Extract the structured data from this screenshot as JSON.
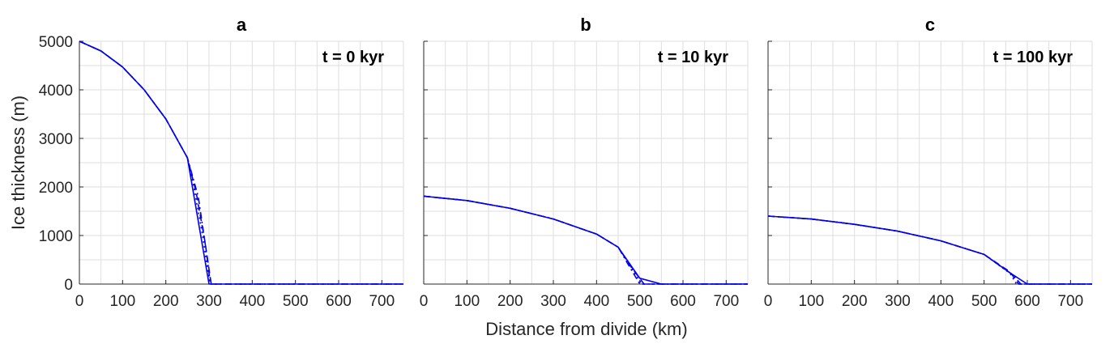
{
  "figure": {
    "xlabel": "Distance from divide (km)",
    "ylabel": "Ice thickness (m)",
    "line_color": "#0000ee"
  },
  "chart_data": [
    {
      "type": "line",
      "title": "a",
      "annotation": "t = 0 kyr",
      "xlim": [
        0,
        750
      ],
      "ylim": [
        0,
        5000
      ],
      "xticks": [
        0,
        100,
        200,
        300,
        400,
        500,
        600,
        700
      ],
      "yticks": [
        0,
        1000,
        2000,
        3000,
        4000,
        5000
      ],
      "grid": true,
      "series": [
        {
          "style": "solid",
          "x": [
            0,
            50,
            100,
            150,
            200,
            250,
            300,
            305,
            750
          ],
          "y": [
            5000,
            4800,
            4470,
            4000,
            3400,
            2600,
            0,
            0,
            0
          ]
        },
        {
          "style": "dashed",
          "x": [
            0,
            50,
            100,
            150,
            200,
            250,
            270,
            290,
            305,
            750
          ],
          "y": [
            5000,
            4800,
            4470,
            4000,
            3400,
            2600,
            1900,
            900,
            0,
            0
          ]
        },
        {
          "style": "dotted",
          "x": [
            0,
            50,
            100,
            150,
            200,
            250,
            265,
            285,
            302,
            750
          ],
          "y": [
            5000,
            4800,
            4470,
            4000,
            3400,
            2600,
            2000,
            1000,
            0,
            0
          ]
        },
        {
          "style": "dashdot",
          "x": [
            0,
            50,
            100,
            150,
            200,
            250,
            275,
            295,
            303,
            750
          ],
          "y": [
            5000,
            4800,
            4470,
            4000,
            3400,
            2600,
            1800,
            600,
            0,
            0
          ]
        }
      ]
    },
    {
      "type": "line",
      "title": "b",
      "annotation": "t = 10 kyr",
      "xlim": [
        0,
        750
      ],
      "ylim": [
        0,
        5000
      ],
      "xticks": [
        0,
        100,
        200,
        300,
        400,
        500,
        600,
        700
      ],
      "yticks": [
        0,
        1000,
        2000,
        3000,
        4000,
        5000
      ],
      "grid": true,
      "series": [
        {
          "style": "solid",
          "x": [
            0,
            100,
            200,
            300,
            400,
            450,
            500,
            550,
            750
          ],
          "y": [
            1810,
            1720,
            1560,
            1340,
            1030,
            760,
            120,
            0,
            0
          ]
        },
        {
          "style": "dashed",
          "x": [
            0,
            100,
            200,
            300,
            400,
            450,
            480,
            510,
            750
          ],
          "y": [
            1810,
            1720,
            1560,
            1340,
            1030,
            760,
            350,
            0,
            0
          ]
        },
        {
          "style": "dotted",
          "x": [
            0,
            100,
            200,
            300,
            400,
            450,
            490,
            505,
            750
          ],
          "y": [
            1810,
            1720,
            1560,
            1340,
            1030,
            760,
            200,
            0,
            0
          ]
        },
        {
          "style": "dashdot",
          "x": [
            0,
            100,
            200,
            300,
            400,
            450,
            470,
            500,
            750
          ],
          "y": [
            1810,
            1720,
            1560,
            1340,
            1030,
            760,
            450,
            0,
            0
          ]
        }
      ]
    },
    {
      "type": "line",
      "title": "c",
      "annotation": "t = 100 kyr",
      "xlim": [
        0,
        750
      ],
      "ylim": [
        0,
        5000
      ],
      "xticks": [
        0,
        100,
        200,
        300,
        400,
        500,
        600,
        700
      ],
      "yticks": [
        0,
        1000,
        2000,
        3000,
        4000,
        5000
      ],
      "grid": true,
      "series": [
        {
          "style": "solid",
          "x": [
            0,
            100,
            200,
            300,
            400,
            500,
            560,
            600,
            750
          ],
          "y": [
            1400,
            1340,
            1230,
            1090,
            890,
            610,
            230,
            0,
            0
          ]
        },
        {
          "style": "dashed",
          "x": [
            0,
            100,
            200,
            300,
            400,
            500,
            560,
            580,
            750
          ],
          "y": [
            1400,
            1340,
            1230,
            1090,
            890,
            610,
            250,
            0,
            0
          ]
        },
        {
          "style": "dotted",
          "x": [
            0,
            100,
            200,
            300,
            400,
            500,
            560,
            575,
            750
          ],
          "y": [
            1400,
            1340,
            1230,
            1090,
            890,
            610,
            220,
            0,
            0
          ]
        },
        {
          "style": "dashdot",
          "x": [
            0,
            100,
            200,
            300,
            400,
            500,
            565,
            585,
            750
          ],
          "y": [
            1400,
            1340,
            1230,
            1090,
            890,
            610,
            200,
            0,
            0
          ]
        }
      ]
    }
  ]
}
